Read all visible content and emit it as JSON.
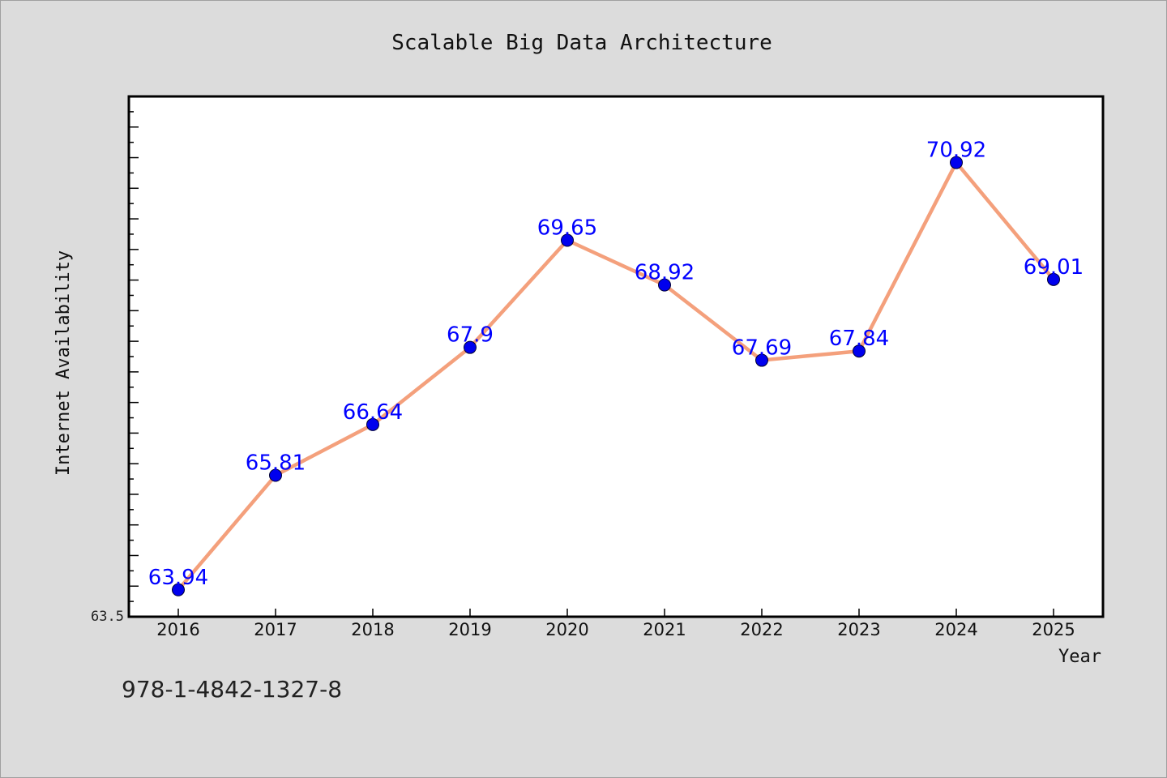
{
  "chart_data": {
    "type": "line",
    "title": "Scalable Big Data Architecture",
    "xlabel": "Year",
    "ylabel": "Internet Availability",
    "categories": [
      "2016",
      "2017",
      "2018",
      "2019",
      "2020",
      "2021",
      "2022",
      "2023",
      "2024",
      "2025"
    ],
    "series": [
      {
        "values": [
          63.94,
          65.81,
          66.64,
          67.9,
          69.65,
          68.92,
          67.69,
          67.84,
          70.92,
          69.01
        ]
      }
    ],
    "data_labels": [
      "63.94",
      "65.81",
      "66.64",
      "67.9",
      "69.65",
      "68.92",
      "67.69",
      "67.84",
      "70.92",
      "69.01"
    ],
    "ylim": [
      63.5,
      72.0
    ],
    "y_tick_label": "63.5",
    "grid": false,
    "legend": "none",
    "colors": {
      "line": "#f4a07c",
      "marker": "#0000ee",
      "data_label": "#0000ff",
      "plot_background": "#ffffff",
      "page_background": "#dcdcdc"
    }
  },
  "footer": {
    "isbn": "978-1-4842-1327-8"
  }
}
